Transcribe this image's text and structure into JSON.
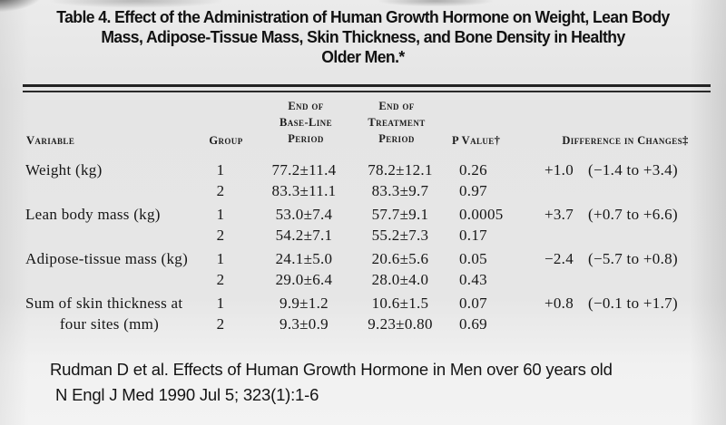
{
  "title": {
    "line1": "Table 4. Effect of the Administration of Human Growth Hormone on Weight, Lean Body",
    "line2": "Mass, Adipose-Tissue Mass, Skin Thickness, and Bone Density in Healthy",
    "line3": "Older Men.*"
  },
  "header": {
    "variable": "Variable",
    "group": "Group",
    "baseline": "End of\nBase-Line\nPeriod",
    "treatment": "End of\nTreatment\nPeriod",
    "p_value": "P Value†",
    "difference": "Difference in Changes‡"
  },
  "rows": [
    {
      "variable": "Weight (kg)",
      "variable_line2": "",
      "group1": {
        "group": "1",
        "baseline": "77.2±11.4",
        "treatment": "78.2±12.1",
        "p_value": "0.26"
      },
      "group2": {
        "group": "2",
        "baseline": "83.3±11.1",
        "treatment": "83.3±9.7",
        "p_value": "0.97"
      },
      "difference": "+1.0",
      "ci": "(−1.4 to +3.4)"
    },
    {
      "variable": "Lean body mass (kg)",
      "variable_line2": "",
      "group1": {
        "group": "1",
        "baseline": "53.0±7.4",
        "treatment": "57.7±9.1",
        "p_value": "0.0005"
      },
      "group2": {
        "group": "2",
        "baseline": "54.2±7.1",
        "treatment": "55.2±7.3",
        "p_value": "0.17"
      },
      "difference": "+3.7",
      "ci": "(+0.7 to +6.6)"
    },
    {
      "variable": "Adipose-tissue mass (kg)",
      "variable_line2": "",
      "group1": {
        "group": "1",
        "baseline": "24.1±5.0",
        "treatment": "20.6±5.6",
        "p_value": "0.05"
      },
      "group2": {
        "group": "2",
        "baseline": "29.0±6.4",
        "treatment": "28.0±4.0",
        "p_value": "0.43"
      },
      "difference": "−2.4",
      "ci": "(−5.7 to +0.8)"
    },
    {
      "variable": "Sum of skin thickness at",
      "variable_line2": "four sites (mm)",
      "group1": {
        "group": "1",
        "baseline": "9.9±1.2",
        "treatment": "10.6±1.5",
        "p_value": "0.07"
      },
      "group2": {
        "group": "2",
        "baseline": "9.3±0.9",
        "treatment": "9.23±0.80",
        "p_value": "0.69"
      },
      "difference": "+0.8",
      "ci": "(−0.1 to +1.7)"
    }
  ],
  "citation": {
    "line1": "Rudman D et al. Effects of Human Growth Hormone in Men over 60 years old",
    "line2": "N Engl J Med 1990 Jul 5; 323(1):1-6"
  },
  "colors": {
    "page_background": "#e9e9e9",
    "text": "#161616"
  }
}
